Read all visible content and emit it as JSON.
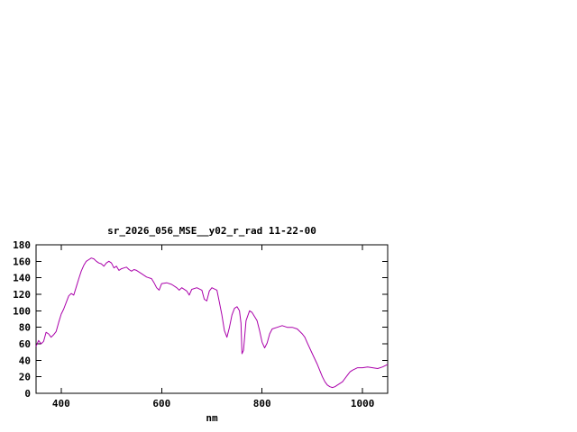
{
  "window": {
    "background_color": "#ffffff"
  },
  "chart_data": {
    "type": "line",
    "title": "sr_2026_056_MSE__y02_r_rad 11-22-00",
    "xlabel": "nm",
    "ylabel": "",
    "xlim": [
      350,
      1050
    ],
    "ylim": [
      0,
      180
    ],
    "x_ticks": [
      400,
      600,
      800,
      1000
    ],
    "y_ticks": [
      0,
      20,
      40,
      60,
      80,
      100,
      120,
      140,
      160,
      180
    ],
    "grid": false,
    "legend_position": "none",
    "line_color": "#aa00aa",
    "border_color": "#000000",
    "series": [
      {
        "name": "sr_2026_056_MSE__y02_r_rad",
        "points": [
          [
            350,
            57
          ],
          [
            355,
            64
          ],
          [
            360,
            60
          ],
          [
            365,
            63
          ],
          [
            370,
            74
          ],
          [
            375,
            72
          ],
          [
            380,
            68
          ],
          [
            385,
            71
          ],
          [
            390,
            75
          ],
          [
            395,
            86
          ],
          [
            400,
            96
          ],
          [
            405,
            102
          ],
          [
            410,
            110
          ],
          [
            415,
            118
          ],
          [
            420,
            121
          ],
          [
            425,
            119
          ],
          [
            430,
            129
          ],
          [
            435,
            139
          ],
          [
            440,
            148
          ],
          [
            445,
            155
          ],
          [
            450,
            160
          ],
          [
            455,
            162
          ],
          [
            460,
            164
          ],
          [
            465,
            163
          ],
          [
            470,
            160
          ],
          [
            475,
            158
          ],
          [
            480,
            157
          ],
          [
            485,
            154
          ],
          [
            490,
            158
          ],
          [
            495,
            160
          ],
          [
            500,
            158
          ],
          [
            505,
            152
          ],
          [
            510,
            154
          ],
          [
            515,
            149
          ],
          [
            520,
            151
          ],
          [
            525,
            152
          ],
          [
            530,
            153
          ],
          [
            535,
            150
          ],
          [
            540,
            148
          ],
          [
            545,
            150
          ],
          [
            550,
            149
          ],
          [
            560,
            145
          ],
          [
            570,
            141
          ],
          [
            580,
            139
          ],
          [
            585,
            134
          ],
          [
            590,
            128
          ],
          [
            595,
            125
          ],
          [
            600,
            133
          ],
          [
            610,
            134
          ],
          [
            620,
            132
          ],
          [
            630,
            128
          ],
          [
            635,
            125
          ],
          [
            640,
            128
          ],
          [
            650,
            124
          ],
          [
            655,
            119
          ],
          [
            660,
            126
          ],
          [
            670,
            128
          ],
          [
            680,
            125
          ],
          [
            685,
            114
          ],
          [
            690,
            112
          ],
          [
            695,
            124
          ],
          [
            700,
            128
          ],
          [
            710,
            125
          ],
          [
            715,
            110
          ],
          [
            720,
            95
          ],
          [
            725,
            76
          ],
          [
            730,
            68
          ],
          [
            735,
            80
          ],
          [
            740,
            95
          ],
          [
            745,
            103
          ],
          [
            750,
            105
          ],
          [
            755,
            100
          ],
          [
            758,
            85
          ],
          [
            760,
            48
          ],
          [
            763,
            52
          ],
          [
            768,
            88
          ],
          [
            775,
            100
          ],
          [
            780,
            98
          ],
          [
            790,
            88
          ],
          [
            795,
            76
          ],
          [
            800,
            62
          ],
          [
            805,
            55
          ],
          [
            810,
            61
          ],
          [
            815,
            72
          ],
          [
            820,
            78
          ],
          [
            830,
            80
          ],
          [
            840,
            82
          ],
          [
            850,
            80
          ],
          [
            860,
            80
          ],
          [
            870,
            78
          ],
          [
            880,
            72
          ],
          [
            885,
            68
          ],
          [
            890,
            61
          ],
          [
            900,
            48
          ],
          [
            910,
            35
          ],
          [
            920,
            20
          ],
          [
            925,
            14
          ],
          [
            930,
            10
          ],
          [
            935,
            8
          ],
          [
            940,
            7
          ],
          [
            945,
            8
          ],
          [
            950,
            10
          ],
          [
            960,
            14
          ],
          [
            970,
            22
          ],
          [
            975,
            26
          ],
          [
            980,
            28
          ],
          [
            990,
            31
          ],
          [
            1000,
            31
          ],
          [
            1010,
            32
          ],
          [
            1020,
            31
          ],
          [
            1030,
            30
          ],
          [
            1040,
            32
          ],
          [
            1050,
            35
          ]
        ]
      }
    ]
  }
}
